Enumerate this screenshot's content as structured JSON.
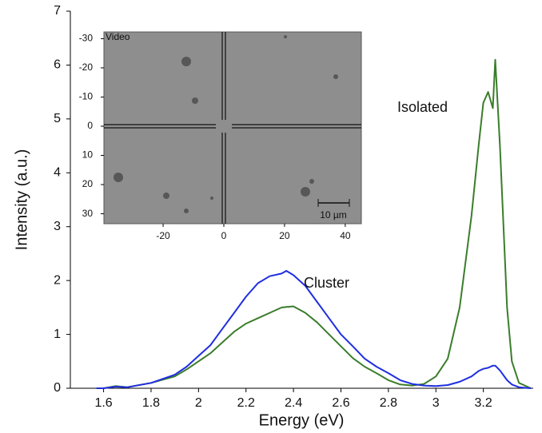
{
  "chart_data": {
    "type": "line",
    "x_label": "Energy (eV)",
    "y_label": "Intensity (a.u.)",
    "x": [
      1.57,
      1.6,
      1.65,
      1.7,
      1.8,
      1.9,
      1.95,
      2.0,
      2.05,
      2.1,
      2.15,
      2.2,
      2.25,
      2.3,
      2.35,
      2.37,
      2.4,
      2.45,
      2.5,
      2.55,
      2.6,
      2.65,
      2.7,
      2.75,
      2.8,
      2.85,
      2.9,
      2.95,
      3.0,
      3.05,
      3.1,
      3.15,
      3.18,
      3.2,
      3.22,
      3.24,
      3.25,
      3.27,
      3.3,
      3.32,
      3.35,
      3.4
    ],
    "series": [
      {
        "name": "Isolated",
        "color": "#3a7d2a",
        "values": [
          0,
          0,
          0.04,
          0.02,
          0.1,
          0.22,
          0.35,
          0.5,
          0.65,
          0.85,
          1.05,
          1.2,
          1.3,
          1.4,
          1.5,
          1.51,
          1.52,
          1.4,
          1.22,
          1.0,
          0.78,
          0.56,
          0.4,
          0.28,
          0.15,
          0.07,
          0.05,
          0.08,
          0.22,
          0.55,
          1.5,
          3.2,
          4.5,
          5.3,
          5.5,
          5.2,
          6.1,
          4.5,
          1.5,
          0.5,
          0.1,
          0
        ]
      },
      {
        "name": "Cluster",
        "color": "#1f2ee0",
        "values": [
          0,
          0,
          0.03,
          0.02,
          0.1,
          0.25,
          0.4,
          0.6,
          0.8,
          1.1,
          1.4,
          1.7,
          1.95,
          2.08,
          2.13,
          2.18,
          2.1,
          1.9,
          1.6,
          1.3,
          1.0,
          0.78,
          0.55,
          0.4,
          0.28,
          0.15,
          0.08,
          0.05,
          0.04,
          0.06,
          0.12,
          0.22,
          0.32,
          0.36,
          0.38,
          0.42,
          0.42,
          0.33,
          0.15,
          0.07,
          0.02,
          0
        ]
      }
    ],
    "xlim": [
      1.46,
      3.41
    ],
    "ylim": [
      0,
      7
    ],
    "xticks": [
      1.6,
      1.8,
      2,
      2.2,
      2.4,
      2.6,
      2.8,
      3,
      3.2
    ],
    "yticks": [
      0,
      1,
      2,
      3,
      4,
      5,
      6,
      7
    ],
    "inset": {
      "label": "Video",
      "scale_bar": "10 µm",
      "xlim": [
        -39.5,
        45.3
      ],
      "ylim": [
        -32.3,
        33.4
      ],
      "xticks": [
        -20,
        0,
        20,
        40
      ],
      "yticks": [
        -30,
        -20,
        -10,
        0,
        10,
        20,
        30
      ]
    }
  }
}
